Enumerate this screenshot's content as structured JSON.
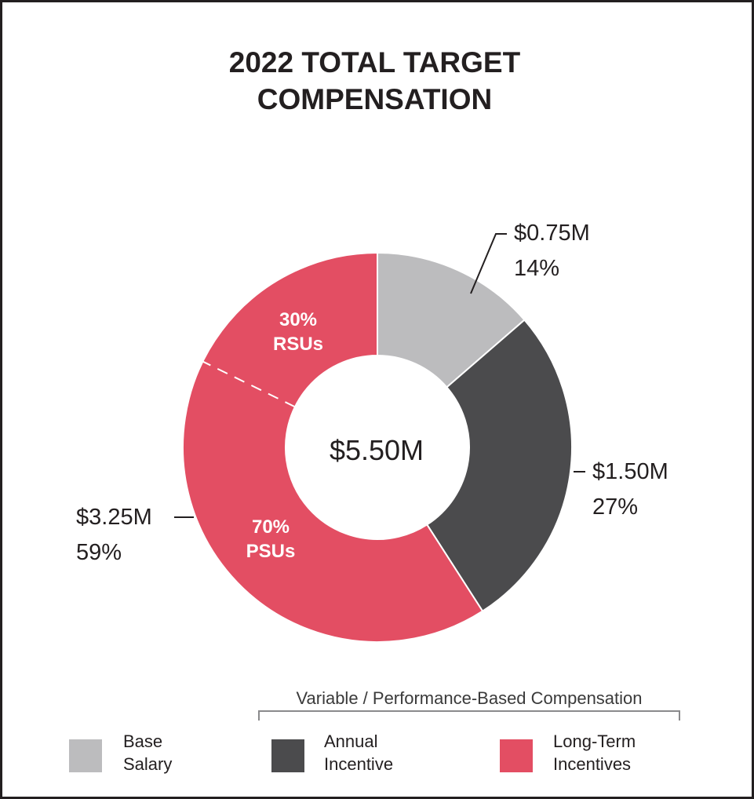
{
  "chart_data": {
    "type": "pie",
    "title": [
      "2022 TOTAL TARGET",
      "COMPENSATION"
    ],
    "center_label": "$5.50M",
    "slices": [
      {
        "name": "Base Salary",
        "value": 0.75,
        "percent": 14,
        "amount_label": "$0.75M",
        "percent_label": "14%",
        "color": "#bcbcbe"
      },
      {
        "name": "Annual Incentive",
        "value": 1.5,
        "percent": 27,
        "amount_label": "$1.50M",
        "percent_label": "27%",
        "color": "#4b4b4d"
      },
      {
        "name": "Long-Term Incentives",
        "value": 3.25,
        "percent": 59,
        "amount_label": "$3.25M",
        "percent_label": "59%",
        "color": "#e34e63"
      }
    ],
    "sub_segments": [
      {
        "parent": "Long-Term Incentives",
        "percent_label": "30%",
        "name": "RSUs",
        "share": 0.3
      },
      {
        "parent": "Long-Term Incentives",
        "percent_label": "70%",
        "name": "PSUs",
        "share": 0.7
      }
    ],
    "bracket_label": "Variable / Performance-Based Compensation",
    "legend": [
      {
        "line1": "Base",
        "line2": "Salary",
        "color": "#bcbcbe"
      },
      {
        "line1": "Annual",
        "line2": "Incentive",
        "color": "#4b4b4d"
      },
      {
        "line1": "Long-Term",
        "line2": "Incentives",
        "color": "#e34e63"
      }
    ]
  }
}
